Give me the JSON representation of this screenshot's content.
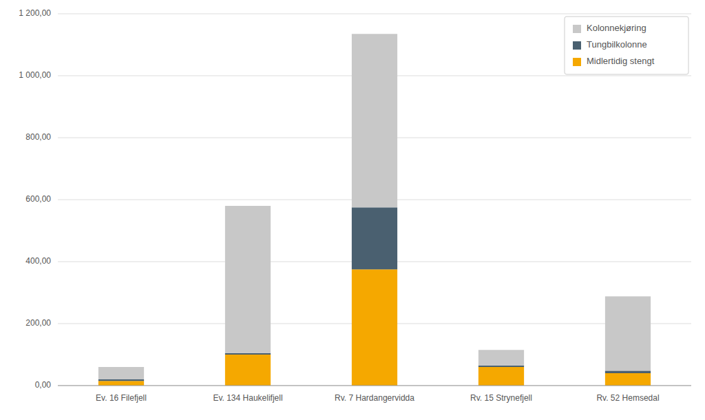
{
  "chart_data": {
    "type": "bar",
    "stacked": true,
    "categories": [
      "Ev. 16 Filefjell",
      "Ev. 134 Haukelifjell",
      "Rv. 7 Hardangervidda",
      "Rv. 15 Strynefjell",
      "Rv. 52 Hemsedal"
    ],
    "series": [
      {
        "name": "Midlertidig stengt",
        "color": "#F5A800",
        "values": [
          15,
          100,
          375,
          60,
          40
        ]
      },
      {
        "name": "Tungbilkolonne",
        "color": "#4A6070",
        "values": [
          5,
          5,
          200,
          5,
          8
        ]
      },
      {
        "name": "Kolonnekjøring",
        "color": "#C8C8C8",
        "values": [
          40,
          475,
          560,
          50,
          240
        ]
      }
    ],
    "ylim": [
      0,
      1200
    ],
    "yticks": [
      {
        "value": 0,
        "label": "0,00"
      },
      {
        "value": 200,
        "label": "200,00"
      },
      {
        "value": 400,
        "label": "400,00"
      },
      {
        "value": 600,
        "label": "600,00"
      },
      {
        "value": 800,
        "label": "800,00"
      },
      {
        "value": 1000,
        "label": "1 000,00"
      },
      {
        "value": 1200,
        "label": "1 200,00"
      }
    ],
    "grid": true,
    "legend": "upper right"
  }
}
